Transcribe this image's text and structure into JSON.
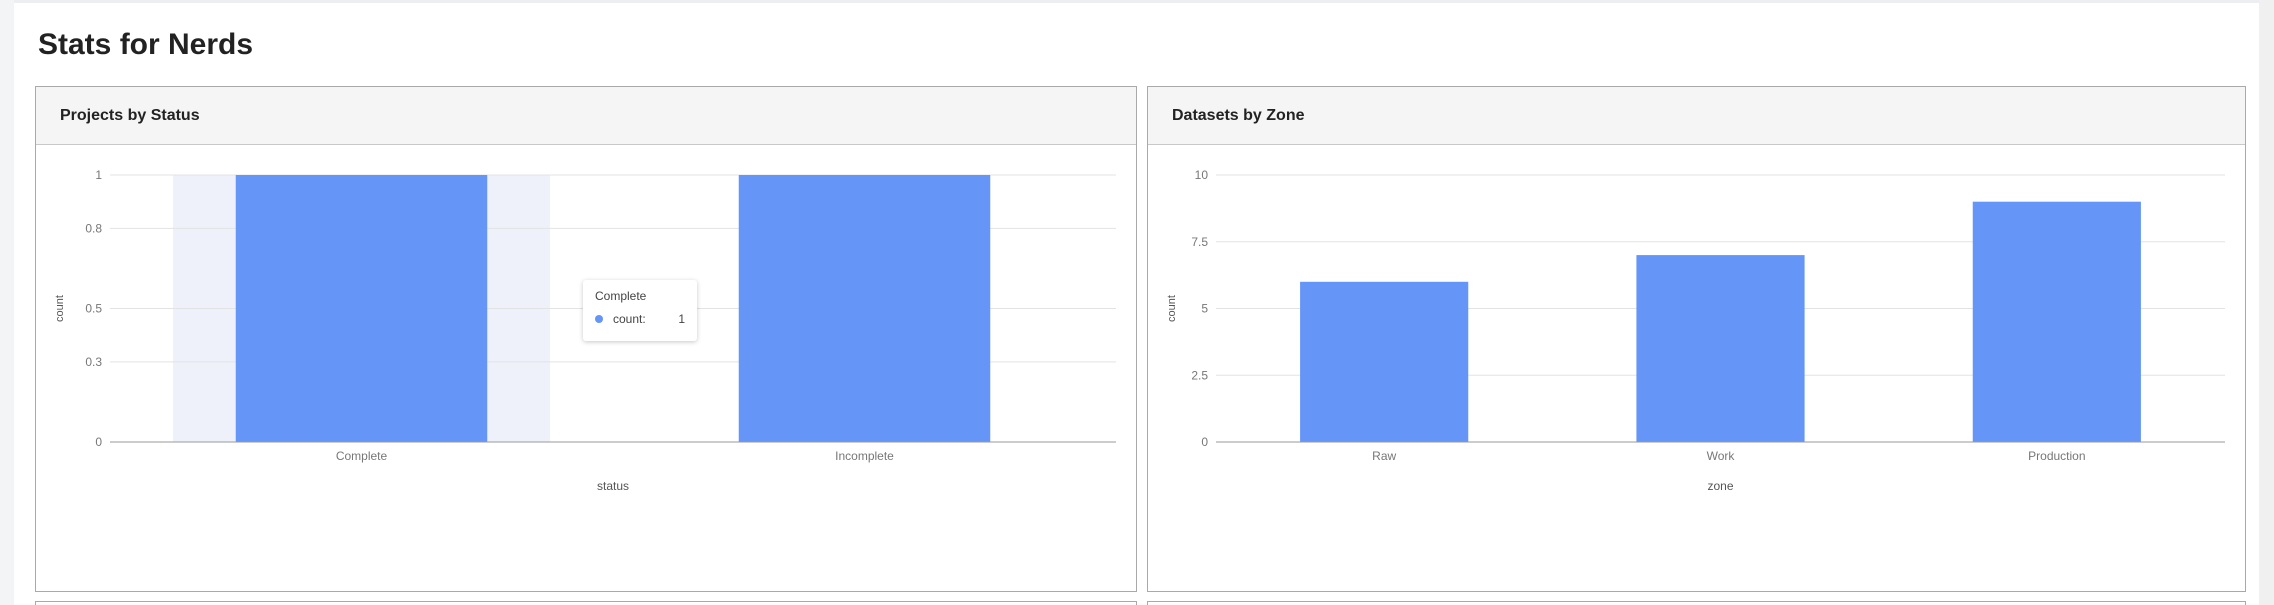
{
  "page": {
    "title": "Stats for Nerds"
  },
  "colors": {
    "bar": "#6495f7",
    "highlight": "#eef1f9",
    "grid": "#e3e3e3",
    "axis": "#9a9a9a",
    "tick_text": "#777777"
  },
  "panels": [
    {
      "title": "Projects by Status"
    },
    {
      "title": "Datasets by Zone"
    }
  ],
  "tooltip": {
    "title": "Complete",
    "name": "count:",
    "value": "1"
  },
  "chart_data": [
    {
      "type": "bar",
      "title": "Projects by Status",
      "categories": [
        "Complete",
        "Incomplete"
      ],
      "values": [
        1,
        1
      ],
      "xlabel": "status",
      "ylabel": "count",
      "ylim": [
        0,
        1
      ],
      "yticks": [
        0,
        0.3,
        0.5,
        0.8,
        1
      ],
      "ytick_labels": [
        "0",
        "0.3",
        "0.5",
        "0.8",
        "1"
      ],
      "grid": true,
      "highlighted_category": "Complete"
    },
    {
      "type": "bar",
      "title": "Datasets by Zone",
      "categories": [
        "Raw",
        "Work",
        "Production"
      ],
      "values": [
        6,
        7,
        9
      ],
      "xlabel": "zone",
      "ylabel": "count",
      "ylim": [
        0,
        10
      ],
      "yticks": [
        0,
        2.5,
        5,
        7.5,
        10
      ],
      "ytick_labels": [
        "0",
        "2.5",
        "5",
        "7.5",
        "10"
      ],
      "grid": true
    }
  ]
}
